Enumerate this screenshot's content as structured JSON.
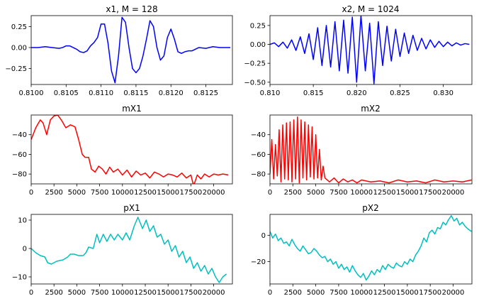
{
  "chart_data": [
    {
      "title": "x1, M = 128",
      "type": "line",
      "color": "#0000ff",
      "xlim": [
        0.81,
        0.81288
      ],
      "ylim": [
        -0.44,
        0.38
      ],
      "xticks": [
        0.81,
        0.8105,
        0.811,
        0.8115,
        0.812,
        0.8125
      ],
      "xticklabels": [
        "0.8100",
        "0.8105",
        "0.8110",
        "0.8115",
        "0.8120",
        "0.8125"
      ],
      "yticks": [
        0.25,
        0.0,
        -0.25
      ],
      "yticklabels": [
        "0.25",
        "0.00",
        "−0.25"
      ],
      "series": [
        {
          "x": [
            0.81,
            0.8101,
            0.8102,
            0.8103,
            0.8104,
            0.81045,
            0.8105,
            0.81055,
            0.8106,
            0.81065,
            0.8107,
            0.81075,
            0.8108,
            0.81085,
            0.8109,
            0.81095,
            0.811,
            0.81105,
            0.8111,
            0.81115,
            0.8112,
            0.81125,
            0.8113,
            0.81135,
            0.8114,
            0.81145,
            0.8115,
            0.81155,
            0.8116,
            0.81165,
            0.8117,
            0.81175,
            0.8118,
            0.81185,
            0.8119,
            0.81195,
            0.812,
            0.81205,
            0.8121,
            0.81215,
            0.8122,
            0.81225,
            0.8123,
            0.81235,
            0.8124,
            0.8125,
            0.8126,
            0.8127,
            0.8128,
            0.81285
          ],
          "y": [
            0.0,
            0.0,
            0.01,
            0.0,
            -0.01,
            0.0,
            0.02,
            0.02,
            0.0,
            -0.02,
            -0.05,
            -0.06,
            -0.04,
            0.02,
            0.06,
            0.12,
            0.28,
            0.28,
            0.05,
            -0.28,
            -0.42,
            -0.1,
            0.36,
            0.3,
            0.0,
            -0.25,
            -0.3,
            -0.25,
            -0.1,
            0.1,
            0.32,
            0.25,
            0.0,
            -0.15,
            -0.1,
            0.12,
            0.22,
            0.1,
            -0.05,
            -0.07,
            -0.05,
            -0.04,
            -0.04,
            -0.02,
            0.0,
            -0.01,
            0.01,
            0.0,
            0.0,
            0.0
          ]
        }
      ]
    },
    {
      "title": "x2, M = 1024",
      "type": "line",
      "color": "#0000ff",
      "xlim": [
        0.81,
        0.8333
      ],
      "ylim": [
        -0.53,
        0.38
      ],
      "xticks": [
        0.81,
        0.815,
        0.82,
        0.825,
        0.83
      ],
      "xticklabels": [
        "0.810",
        "0.815",
        "0.820",
        "0.825",
        "0.830"
      ],
      "yticks": [
        0.25,
        0.0,
        -0.25,
        -0.5
      ],
      "yticklabels": [
        "0.25",
        "0.00",
        "−0.25",
        "−0.50"
      ],
      "series": [
        {
          "x": [
            0.81,
            0.8105,
            0.811,
            0.8115,
            0.812,
            0.8125,
            0.813,
            0.8135,
            0.814,
            0.8145,
            0.815,
            0.8155,
            0.816,
            0.8165,
            0.817,
            0.8175,
            0.818,
            0.8185,
            0.819,
            0.8195,
            0.82,
            0.8205,
            0.821,
            0.8215,
            0.822,
            0.8225,
            0.823,
            0.8235,
            0.824,
            0.8245,
            0.825,
            0.8255,
            0.826,
            0.8265,
            0.827,
            0.8275,
            0.828,
            0.8285,
            0.829,
            0.8295,
            0.83,
            0.8305,
            0.831,
            0.8315,
            0.832,
            0.8325,
            0.833
          ],
          "y": [
            0.0,
            0.02,
            -0.03,
            0.03,
            -0.05,
            0.06,
            -0.08,
            0.1,
            -0.12,
            0.14,
            -0.2,
            0.22,
            -0.28,
            0.25,
            -0.3,
            0.3,
            -0.35,
            0.32,
            -0.38,
            0.36,
            -0.5,
            0.38,
            -0.35,
            0.28,
            -0.52,
            0.3,
            -0.28,
            0.24,
            -0.22,
            0.2,
            -0.16,
            0.15,
            -0.12,
            0.12,
            -0.08,
            0.08,
            -0.06,
            0.06,
            -0.04,
            0.04,
            -0.03,
            0.03,
            -0.02,
            0.02,
            -0.01,
            0.01,
            0.0
          ]
        }
      ]
    },
    {
      "title": "mX1",
      "type": "line",
      "color": "#ff0000",
      "xlim": [
        0,
        22050
      ],
      "ylim": [
        -90,
        -20
      ],
      "xticks": [
        0,
        2500,
        5000,
        7500,
        10000,
        12500,
        15000,
        17500,
        20000
      ],
      "xticklabels": [
        "0",
        "2500",
        "5000",
        "7500",
        "10000",
        "12500",
        "15000",
        "17500",
        "20000"
      ],
      "yticks": [
        -40,
        -60,
        -80
      ],
      "yticklabels": [
        "−40",
        "−60",
        "−80"
      ],
      "series": [
        {
          "x": [
            0,
            500,
            1000,
            1300,
            1700,
            2100,
            2500,
            2900,
            3300,
            3800,
            4300,
            4800,
            5200,
            5600,
            5900,
            6300,
            6600,
            7000,
            7400,
            7800,
            8200,
            8600,
            9000,
            9500,
            10000,
            10500,
            11000,
            11500,
            12000,
            12500,
            13000,
            13500,
            14000,
            14500,
            15000,
            15500,
            16000,
            16500,
            17000,
            17500,
            17800,
            18200,
            18600,
            19000,
            19500,
            20000,
            20500,
            21000,
            21600
          ],
          "y": [
            -45,
            -33,
            -25,
            -28,
            -40,
            -25,
            -21,
            -20,
            -25,
            -33,
            -30,
            -32,
            -45,
            -60,
            -63,
            -63,
            -75,
            -78,
            -72,
            -75,
            -80,
            -73,
            -78,
            -75,
            -81,
            -76,
            -83,
            -77,
            -81,
            -79,
            -84,
            -78,
            -80,
            -83,
            -80,
            -81,
            -83,
            -79,
            -84,
            -81,
            -92,
            -81,
            -85,
            -80,
            -83,
            -80,
            -81,
            -80,
            -81
          ]
        }
      ]
    },
    {
      "title": "mX2",
      "type": "line",
      "color": "#ff0000",
      "xlim": [
        0,
        22050
      ],
      "ylim": [
        -90,
        -20
      ],
      "xticks": [
        0,
        2500,
        5000,
        7500,
        10000,
        12500,
        15000,
        17500,
        20000
      ],
      "xticklabels": [
        "0",
        "2500",
        "5000",
        "7500",
        "10000",
        "12500",
        "15000",
        "17500",
        "20000"
      ],
      "yticks": [
        -40,
        -60,
        -80
      ],
      "yticklabels": [
        "−40",
        "−60",
        "−80"
      ],
      "series": [
        {
          "x": [
            0,
            200,
            400,
            600,
            800,
            1000,
            1200,
            1400,
            1600,
            1800,
            2000,
            2200,
            2400,
            2600,
            2800,
            3000,
            3200,
            3400,
            3600,
            3800,
            4000,
            4200,
            4400,
            4600,
            4800,
            5000,
            5200,
            5400,
            5600,
            5800,
            6000,
            6500,
            7000,
            7500,
            8000,
            8500,
            9000,
            9500,
            10000,
            11000,
            12000,
            13000,
            14000,
            15000,
            16000,
            17000,
            18000,
            19000,
            20000,
            21000,
            22000
          ],
          "y": [
            -80,
            -45,
            -85,
            -50,
            -82,
            -35,
            -88,
            -30,
            -85,
            -28,
            -86,
            -27,
            -88,
            -25,
            -85,
            -22,
            -89,
            -25,
            -84,
            -27,
            -86,
            -30,
            -83,
            -32,
            -85,
            -40,
            -84,
            -55,
            -86,
            -72,
            -84,
            -88,
            -84,
            -89,
            -85,
            -88,
            -86,
            -89,
            -86,
            -88,
            -87,
            -89,
            -86,
            -88,
            -87,
            -89,
            -86,
            -88,
            -87,
            -88,
            -86
          ]
        }
      ]
    },
    {
      "title": "pX1",
      "type": "line",
      "color": "#00bfbf",
      "xlim": [
        0,
        22050
      ],
      "ylim": [
        -12.5,
        12
      ],
      "xticks": [
        0,
        2500,
        5000,
        7500,
        10000,
        12500,
        15000,
        17500,
        20000
      ],
      "xticklabels": [
        "0",
        "2500",
        "5000",
        "7500",
        "10000",
        "12500",
        "15000",
        "17500",
        "20000"
      ],
      "yticks": [
        10,
        0,
        -10
      ],
      "yticklabels": [
        "10",
        "0",
        "−10"
      ],
      "series": [
        {
          "x": [
            0,
            500,
            1000,
            1500,
            1800,
            2200,
            2800,
            3500,
            4000,
            4300,
            4700,
            5200,
            5700,
            6000,
            6300,
            6800,
            7200,
            7500,
            7900,
            8300,
            8700,
            9100,
            9500,
            10000,
            10400,
            10800,
            11300,
            11700,
            12200,
            12600,
            13000,
            13400,
            13800,
            14200,
            14600,
            15000,
            15400,
            15800,
            16200,
            16600,
            17000,
            17400,
            17800,
            18200,
            18600,
            19000,
            19400,
            19800,
            20200,
            20600,
            21000,
            21400
          ],
          "y": [
            0,
            -1.5,
            -2.5,
            -3,
            -5,
            -5.5,
            -4.5,
            -4,
            -3,
            -2,
            -2,
            -2.5,
            -2.5,
            -1.5,
            0.5,
            0,
            5,
            2,
            5,
            2.5,
            5,
            3,
            5,
            3,
            5.5,
            3,
            8,
            11,
            7,
            10,
            6,
            8,
            4,
            5,
            1.5,
            3,
            -1,
            1,
            -3,
            -1,
            -5,
            -3,
            -7,
            -5,
            -8,
            -6,
            -9,
            -7,
            -10,
            -12,
            -10,
            -9
          ]
        }
      ]
    },
    {
      "title": "pX2",
      "type": "line",
      "color": "#00bfbf",
      "xlim": [
        0,
        22050
      ],
      "ylim": [
        -37,
        16
      ],
      "xticks": [
        0,
        2500,
        5000,
        7500,
        10000,
        12500,
        15000,
        17500,
        20000
      ],
      "xticklabels": [
        "0",
        "2500",
        "5000",
        "7500",
        "10000",
        "12500",
        "15000",
        "17500",
        "20000"
      ],
      "yticks": [
        0,
        -20
      ],
      "yticklabels": [
        "0",
        "−20"
      ],
      "series": [
        {
          "x": [
            0,
            300,
            600,
            900,
            1200,
            1500,
            1800,
            2100,
            2400,
            2700,
            3000,
            3300,
            3600,
            3900,
            4200,
            4500,
            4800,
            5100,
            5400,
            5700,
            6000,
            6300,
            6600,
            6900,
            7200,
            7500,
            7800,
            8100,
            8400,
            8700,
            9000,
            9300,
            9600,
            9900,
            10200,
            10500,
            10800,
            11100,
            11400,
            11700,
            12000,
            12300,
            12600,
            12900,
            13200,
            13500,
            13800,
            14100,
            14400,
            14700,
            15000,
            15300,
            15600,
            15900,
            16200,
            16500,
            16800,
            17100,
            17400,
            17700,
            18000,
            18300,
            18600,
            18900,
            19200,
            19500,
            19800,
            20100,
            20400,
            20700,
            21000,
            21300,
            21600,
            22000
          ],
          "y": [
            3,
            -2,
            1,
            -4,
            -2,
            -6,
            -5,
            -8,
            -3,
            -7,
            -10,
            -12,
            -8,
            -11,
            -14,
            -13,
            -10,
            -12,
            -15,
            -17,
            -16,
            -20,
            -18,
            -22,
            -20,
            -25,
            -22,
            -26,
            -24,
            -28,
            -23,
            -27,
            -30,
            -32,
            -29,
            -34,
            -31,
            -27,
            -30,
            -26,
            -28,
            -23,
            -26,
            -22,
            -24,
            -25,
            -21,
            -23,
            -24,
            -20,
            -22,
            -18,
            -20,
            -15,
            -12,
            -8,
            -2,
            -5,
            2,
            4,
            1,
            6,
            5,
            10,
            8,
            12,
            15,
            11,
            13,
            8,
            10,
            7,
            5,
            3
          ]
        }
      ]
    }
  ]
}
